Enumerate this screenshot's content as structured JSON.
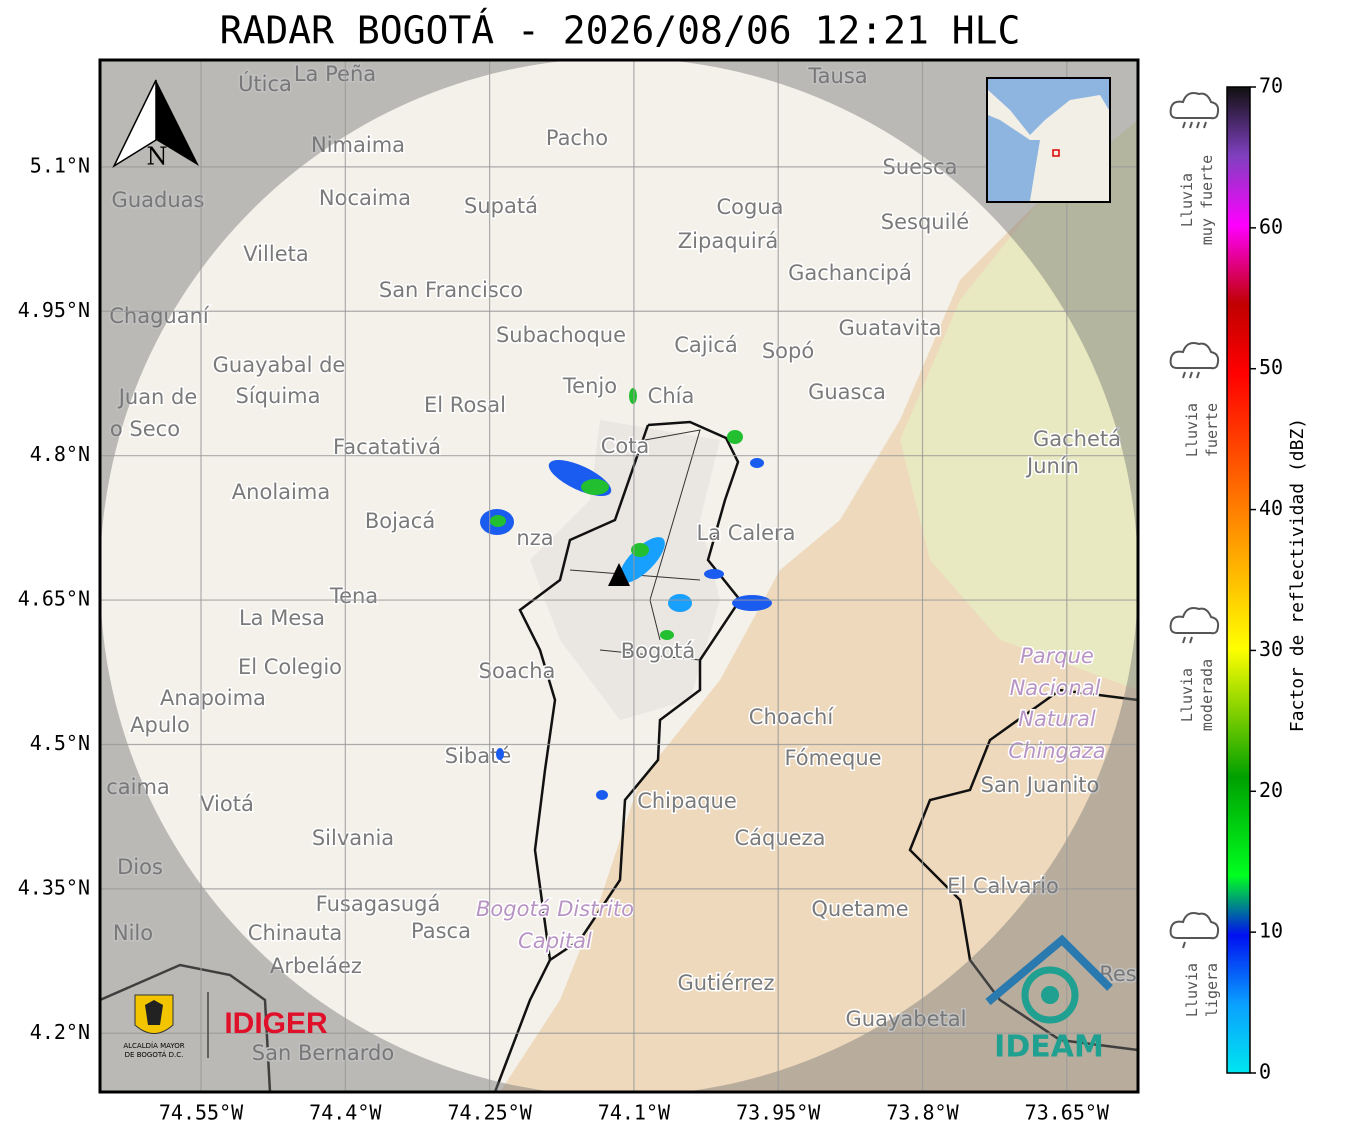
{
  "title": "RADAR BOGOTÁ - 2026/08/06 12:21 HLC",
  "map": {
    "lonlim": [
      -74.655,
      -73.576
    ],
    "latlim": [
      4.139,
      5.211
    ],
    "lon_ticks": [
      {
        "value": -74.55,
        "label": "74.55°W"
      },
      {
        "value": -74.4,
        "label": "74.4°W"
      },
      {
        "value": -74.25,
        "label": "74.25°W"
      },
      {
        "value": -74.1,
        "label": "74.1°W"
      },
      {
        "value": -73.95,
        "label": "73.95°W"
      },
      {
        "value": -73.8,
        "label": "73.8°W"
      },
      {
        "value": -73.65,
        "label": "73.65°W"
      }
    ],
    "lat_ticks": [
      {
        "value": 5.1,
        "label": "5.1°N"
      },
      {
        "value": 4.95,
        "label": "4.95°N"
      },
      {
        "value": 4.8,
        "label": "4.8°N"
      },
      {
        "value": 4.65,
        "label": "4.65°N"
      },
      {
        "value": 4.5,
        "label": "4.5°N"
      },
      {
        "value": 4.35,
        "label": "4.35°N"
      },
      {
        "value": 4.2,
        "label": "4.2°N"
      }
    ],
    "north": "N",
    "places": [
      "Útica",
      "La Peña",
      "Tausa",
      "Pacho",
      "Nimaima",
      "Suesca",
      "Guaduas",
      "Nocaima",
      "Supatá",
      "Cogua",
      "Sesquilé",
      "Zipaquirá",
      "Villeta",
      "Gachancipá",
      "San Francisco",
      "Chaguaní",
      "Guatavita",
      "Subachoque",
      "Cajicá",
      "Sopó",
      "Guayabal de",
      "Síquima",
      "Tenjo",
      "Chía",
      "Guasca",
      "Juan de",
      "o Seco",
      "El Rosal",
      "Cota",
      "Facatativá",
      "Gachetá",
      "Junín",
      "Anolaima",
      "Bojacá",
      "nza",
      "La Calera",
      "Tena",
      "La Mesa",
      "El Colegio",
      "Soacha",
      "Bogotá",
      "Anapoima",
      "Apulo",
      "Choachí",
      "Fómeque",
      "San Juanito",
      "Sibaté",
      "caima",
      "Viotá",
      "Chipaque",
      "Cáqueza",
      "Silvania",
      "Dios",
      "El Calvario",
      "Fusagasugá",
      "Quetame",
      "Chinauta",
      "Pasca",
      "Nilo",
      "Arbeláez",
      "Gutiérrez",
      "Res",
      "Guayabetal",
      "San Bernardo"
    ],
    "parks": [
      "Parque",
      "Nacional",
      "Natural",
      "Chingaza",
      "Bogotá Distrito",
      "Capital"
    ]
  },
  "logos": {
    "bogota": "ALCALDÍA MAYOR",
    "bogota2": "DE BOGOTÁ D.C.",
    "idiger": "IDIGER",
    "ideam": "IDEAM"
  },
  "colorbar": {
    "label": "Factor de reflectividad (dBZ)",
    "range": [
      0,
      70
    ],
    "ticks": [
      0,
      10,
      20,
      30,
      40,
      50,
      60,
      70
    ]
  },
  "rain_levels": [
    [
      "Lluvia",
      "muy fuerte"
    ],
    [
      "Lluvia",
      "fuerte"
    ],
    [
      "Lluvia",
      "moderada"
    ],
    [
      "Lluvia",
      "ligera"
    ]
  ]
}
